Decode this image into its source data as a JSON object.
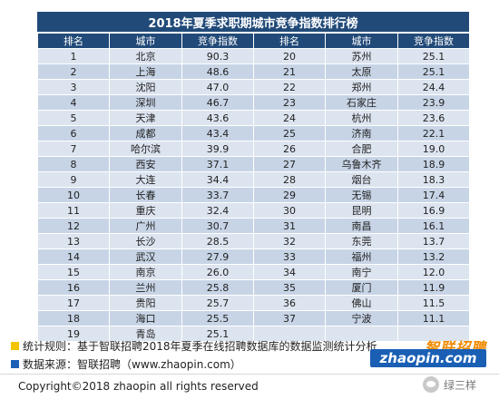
{
  "title": "2018年夏季求职期城市竞争指数排行榜",
  "headers": [
    "排名",
    "城市",
    "竞争指数",
    "排名",
    "城市",
    "竞争指数"
  ],
  "rows": [
    {
      "left": {
        "rank": "1",
        "city": "北京",
        "value": "90.3"
      },
      "right": {
        "rank": "20",
        "city": "苏州",
        "value": "25.1"
      }
    },
    {
      "left": {
        "rank": "2",
        "city": "上海",
        "value": "48.6"
      },
      "right": {
        "rank": "21",
        "city": "太原",
        "value": "25.1"
      }
    },
    {
      "left": {
        "rank": "3",
        "city": "沈阳",
        "value": "47.0"
      },
      "right": {
        "rank": "22",
        "city": "郑州",
        "value": "24.4"
      }
    },
    {
      "left": {
        "rank": "4",
        "city": "深圳",
        "value": "46.7"
      },
      "right": {
        "rank": "23",
        "city": "石家庄",
        "value": "23.9"
      }
    },
    {
      "left": {
        "rank": "5",
        "city": "天津",
        "value": "43.6"
      },
      "right": {
        "rank": "24",
        "city": "杭州",
        "value": "23.6"
      }
    },
    {
      "left": {
        "rank": "6",
        "city": "成都",
        "value": "43.4"
      },
      "right": {
        "rank": "25",
        "city": "济南",
        "value": "22.1"
      }
    },
    {
      "left": {
        "rank": "7",
        "city": "哈尔滨",
        "value": "39.9"
      },
      "right": {
        "rank": "26",
        "city": "合肥",
        "value": "19.0"
      }
    },
    {
      "left": {
        "rank": "8",
        "city": "西安",
        "value": "37.1"
      },
      "right": {
        "rank": "27",
        "city": "乌鲁木齐",
        "value": "18.9"
      }
    },
    {
      "left": {
        "rank": "9",
        "city": "大连",
        "value": "34.4"
      },
      "right": {
        "rank": "28",
        "city": "烟台",
        "value": "18.3"
      }
    },
    {
      "left": {
        "rank": "10",
        "city": "长春",
        "value": "33.7"
      },
      "right": {
        "rank": "29",
        "city": "无锡",
        "value": "17.4"
      }
    },
    {
      "left": {
        "rank": "11",
        "city": "重庆",
        "value": "32.4"
      },
      "right": {
        "rank": "30",
        "city": "昆明",
        "value": "16.9"
      }
    },
    {
      "left": {
        "rank": "12",
        "city": "广州",
        "value": "30.7"
      },
      "right": {
        "rank": "31",
        "city": "南昌",
        "value": "16.1"
      }
    },
    {
      "left": {
        "rank": "13",
        "city": "长沙",
        "value": "28.5"
      },
      "right": {
        "rank": "32",
        "city": "东莞",
        "value": "13.7"
      }
    },
    {
      "left": {
        "rank": "14",
        "city": "武汉",
        "value": "27.9"
      },
      "right": {
        "rank": "33",
        "city": "福州",
        "value": "13.2"
      }
    },
    {
      "left": {
        "rank": "15",
        "city": "南京",
        "value": "26.0"
      },
      "right": {
        "rank": "34",
        "city": "南宁",
        "value": "12.0"
      }
    },
    {
      "left": {
        "rank": "16",
        "city": "兰州",
        "value": "25.8"
      },
      "right": {
        "rank": "35",
        "city": "厦门",
        "value": "11.9"
      }
    },
    {
      "left": {
        "rank": "17",
        "city": "贵阳",
        "value": "25.7"
      },
      "right": {
        "rank": "36",
        "city": "佛山",
        "value": "11.5"
      }
    },
    {
      "left": {
        "rank": "18",
        "city": "海口",
        "value": "25.5"
      },
      "right": {
        "rank": "37",
        "city": "宁波",
        "value": "11.1"
      }
    },
    {
      "left": {
        "rank": "19",
        "city": "青岛",
        "value": "25.1"
      },
      "right": {
        "rank": "",
        "city": "",
        "value": ""
      }
    }
  ],
  "notes": {
    "rule": "统计规则：基于智联招聘2018年夏季在线招聘数据库的数据监测统计分析",
    "source": "数据来源：智联招聘（www.zhaopin.com）",
    "rule_color": "#f5c400",
    "source_color": "#1a5fb4"
  },
  "logo": {
    "cn": "智联招聘",
    "en": "zhaopin.com"
  },
  "copyright": "Copyright©2018 zhaopin all rights reserved",
  "watermark": "绿三样",
  "colors": {
    "header": "#214a78",
    "row_light": "#dce4ef",
    "row_dark": "#c7d4e6"
  }
}
